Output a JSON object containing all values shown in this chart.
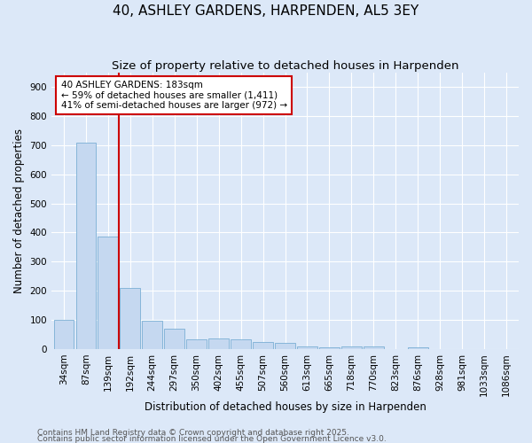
{
  "title": "40, ASHLEY GARDENS, HARPENDEN, AL5 3EY",
  "subtitle": "Size of property relative to detached houses in Harpenden",
  "xlabel": "Distribution of detached houses by size in Harpenden",
  "ylabel": "Number of detached properties",
  "bar_labels": [
    "34sqm",
    "87sqm",
    "139sqm",
    "192sqm",
    "244sqm",
    "297sqm",
    "350sqm",
    "402sqm",
    "455sqm",
    "507sqm",
    "560sqm",
    "613sqm",
    "665sqm",
    "718sqm",
    "770sqm",
    "823sqm",
    "876sqm",
    "928sqm",
    "981sqm",
    "1033sqm",
    "1086sqm"
  ],
  "bar_values": [
    100,
    710,
    385,
    210,
    97,
    70,
    33,
    35,
    33,
    25,
    22,
    8,
    5,
    10,
    10,
    0,
    5,
    0,
    0,
    0,
    0
  ],
  "bar_color": "#c5d8f0",
  "bar_edge_color": "#7bafd4",
  "marker_line_color": "#cc0000",
  "annotation_text": "40 ASHLEY GARDENS: 183sqm\n← 59% of detached houses are smaller (1,411)\n41% of semi-detached houses are larger (972) →",
  "annotation_box_color": "#ffffff",
  "annotation_box_edge_color": "#cc0000",
  "yticks": [
    0,
    100,
    200,
    300,
    400,
    500,
    600,
    700,
    800,
    900
  ],
  "ylim": [
    0,
    950
  ],
  "footer_line1": "Contains HM Land Registry data © Crown copyright and database right 2025.",
  "footer_line2": "Contains public sector information licensed under the Open Government Licence v3.0.",
  "bg_color": "#dce8f8",
  "plot_bg_color": "#dce8f8",
  "title_fontsize": 11,
  "subtitle_fontsize": 9.5,
  "axis_label_fontsize": 8.5,
  "tick_fontsize": 7.5,
  "annotation_fontsize": 7.5,
  "footer_fontsize": 6.5
}
